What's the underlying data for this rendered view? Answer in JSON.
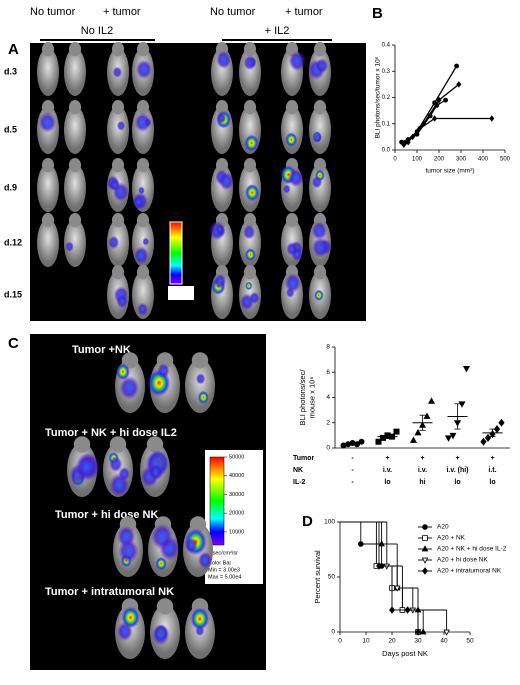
{
  "panels": {
    "A": {
      "letter": "A",
      "col_headers": [
        "No tumor",
        "+ tumor",
        "No tumor",
        "+ tumor"
      ],
      "groups": [
        "No IL2",
        "+ IL2"
      ],
      "rows": [
        "d.3",
        "d.5",
        "d.9",
        "d.12",
        "d.15"
      ]
    },
    "B": {
      "letter": "B"
    },
    "C": {
      "letter": "C",
      "rows": [
        "Tumor +NK",
        "Tumor + NK + hi dose IL2",
        "Tumor + hi dose NK",
        "Tumor + intratumoral NK"
      ],
      "colorbar": {
        "ticks": [
          50000,
          40000,
          30000,
          20000,
          10000
        ],
        "lim": [
          3000,
          50000
        ],
        "unit": "p/sec/cm²/sr",
        "title": "Color Bar",
        "min": "Min = 3.00e3",
        "max": "Max = 5.00e4"
      }
    },
    "D": {
      "letter": "D"
    }
  },
  "chart_data": [
    {
      "type": "line",
      "xlabel": "tumor size (mm²)",
      "ylabel": "BLI photons/sec/tumor x 10⁶",
      "xlim": [
        0,
        500
      ],
      "ylim": [
        0,
        0.4
      ],
      "xticks": [
        0,
        100,
        200,
        300,
        400,
        500
      ],
      "yticks": [
        {
          "value": 0,
          "label": "0.0"
        },
        0.1,
        0.2,
        0.3,
        0.4
      ],
      "series": [
        {
          "color": "#000000",
          "x": [
            30,
            60,
            100,
            180,
            280
          ],
          "values": [
            0.03,
            0.04,
            0.07,
            0.18,
            0.32
          ]
        },
        {
          "color": "#000000",
          "x": [
            40,
            80,
            130,
            200,
            290
          ],
          "values": [
            0.02,
            0.05,
            0.1,
            0.19,
            0.25
          ]
        },
        {
          "color": "#000000",
          "x": [
            50,
            100,
            160,
            190,
            230
          ],
          "values": [
            0.03,
            0.06,
            0.13,
            0.17,
            0.19
          ]
        },
        {
          "color": "#000000",
          "x": [
            60,
            110,
            180,
            440
          ],
          "values": [
            0.03,
            0.08,
            0.12,
            0.12
          ]
        }
      ]
    },
    {
      "type": "dot",
      "ylabel": [
        "BLI photons/sec/",
        "mouse x 10⁶"
      ],
      "ylim": [
        0,
        8
      ],
      "yticks": [
        0,
        2,
        4,
        6,
        8
      ],
      "color": "#000000",
      "groups": [
        {
          "marker": "circle",
          "values": [
            0.2,
            0.3,
            0.4,
            0.3,
            0.5
          ],
          "mean": 0.35,
          "error": 0.05
        },
        {
          "marker": "square",
          "values": [
            0.5,
            0.8,
            1.0,
            0.9,
            1.3
          ],
          "mean": 0.9,
          "error": 0.15
        },
        {
          "marker": "triangle",
          "values": [
            0.6,
            1.2,
            1.8,
            2.5,
            3.7
          ],
          "mean": 2.0,
          "error": 0.6
        },
        {
          "marker": "triangle-down",
          "values": [
            0.8,
            1.0,
            2.0,
            3.5,
            6.3
          ],
          "mean": 2.5,
          "error": 1.0
        },
        {
          "marker": "diamond",
          "values": [
            0.5,
            0.8,
            1.1,
            1.5,
            2.0
          ],
          "mean": 1.2,
          "error": 0.3
        }
      ],
      "table": [
        {
          "label": "Tumor",
          "cells": [
            "-",
            "+",
            "+",
            "+",
            "+"
          ]
        },
        {
          "label": "NK",
          "cells": [
            "-",
            "i.v.",
            "i.v.",
            "i.v. (hi)",
            "i.t."
          ]
        },
        {
          "label": "IL-2",
          "cells": [
            "-",
            "lo",
            "hi",
            "lo",
            "lo"
          ]
        }
      ]
    },
    {
      "type": "survival",
      "ylabel": "Percent survival",
      "xlabel": "Days post NK",
      "xlim": [
        0,
        50
      ],
      "ylim": [
        0,
        100
      ],
      "xticks": [
        0,
        10,
        20,
        30,
        40,
        50
      ],
      "yticks": [
        0,
        50,
        100
      ],
      "legend": "upper right",
      "series": [
        {
          "name": "A20",
          "color": "#000000",
          "marker": "circle",
          "filled": true,
          "x": [
            0,
            8,
            16,
            24,
            30
          ],
          "values": [
            100,
            80,
            60,
            20,
            0
          ]
        },
        {
          "name": "A20 + NK",
          "color": "#000000",
          "marker": "square",
          "filled": false,
          "x": [
            0,
            14,
            20,
            24,
            30
          ],
          "values": [
            100,
            60,
            40,
            20,
            0
          ]
        },
        {
          "name": "A20 + NK + hi dose IL-2",
          "color": "#000000",
          "marker": "triangle",
          "filled": true,
          "x": [
            0,
            16,
            22,
            30,
            32
          ],
          "values": [
            100,
            80,
            40,
            20,
            0
          ]
        },
        {
          "name": "A20 + hi dose NK",
          "color": "#000000",
          "marker": "triangle-down",
          "filled": false,
          "x": [
            0,
            18,
            22,
            28,
            41
          ],
          "values": [
            100,
            60,
            40,
            20,
            0
          ]
        },
        {
          "name": "A20 + intratumoral NK",
          "color": "#000000",
          "marker": "diamond",
          "filled": true,
          "x": [
            0,
            15,
            20,
            26,
            30
          ],
          "values": [
            100,
            60,
            20,
            20,
            0
          ]
        }
      ]
    }
  ]
}
